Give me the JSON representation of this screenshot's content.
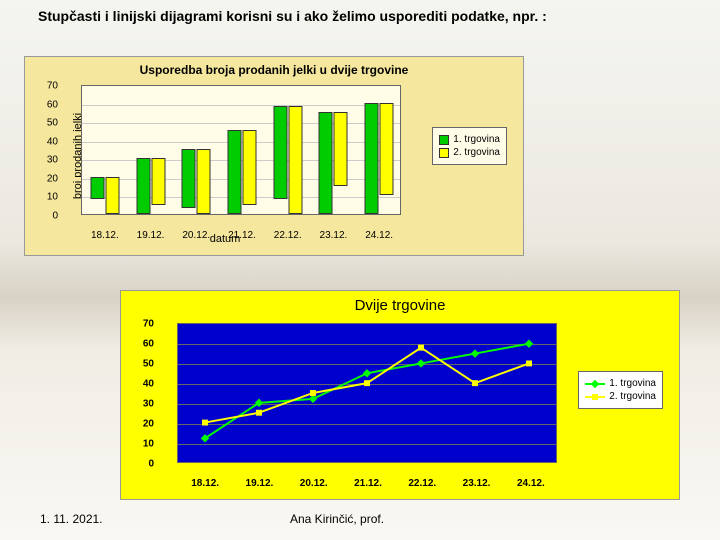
{
  "title": "Stupčasti i linijski dijagrami korisni su i ako želimo usporediti podatke, npr. :",
  "footer": {
    "date": "1. 11. 2021.",
    "author": "Ana Kirinčić, prof."
  },
  "chart1": {
    "type": "bar",
    "title": "Usporedba broja prodanih jelki u dvije trgovine",
    "y_label": "broj prodanih jelki",
    "x_label": "datum",
    "ylim": [
      0,
      70
    ],
    "ytick_step": 10,
    "categories": [
      "18.12.",
      "19.12.",
      "20.12.",
      "21.12.",
      "22.12.",
      "23.12.",
      "24.12."
    ],
    "series": [
      {
        "name": "1. trgovina",
        "color": "#00cc00",
        "values": [
          12,
          30,
          32,
          45,
          50,
          55,
          60
        ]
      },
      {
        "name": "2. trgovina",
        "color": "#ffff00",
        "values": [
          20,
          25,
          35,
          40,
          58,
          40,
          50
        ]
      }
    ],
    "bg": "#f5e79e",
    "plot_bg": "#fffde8",
    "grid_color": "#cccccc"
  },
  "chart2": {
    "type": "line",
    "title": "Dvije trgovine",
    "ylim": [
      0,
      70
    ],
    "ytick_step": 10,
    "categories": [
      "18.12.",
      "19.12.",
      "20.12.",
      "21.12.",
      "22.12.",
      "23.12.",
      "24.12."
    ],
    "series": [
      {
        "name": "1. trgovina",
        "color": "#00ff00",
        "marker": "diamond",
        "values": [
          12,
          30,
          32,
          45,
          50,
          55,
          60
        ]
      },
      {
        "name": "2. trgovina",
        "color": "#ffff00",
        "marker": "square",
        "values": [
          20,
          25,
          35,
          40,
          58,
          40,
          50
        ]
      }
    ],
    "bg": "#ffff00",
    "plot_bg": "#0000cc",
    "grid_color": "#666666"
  }
}
